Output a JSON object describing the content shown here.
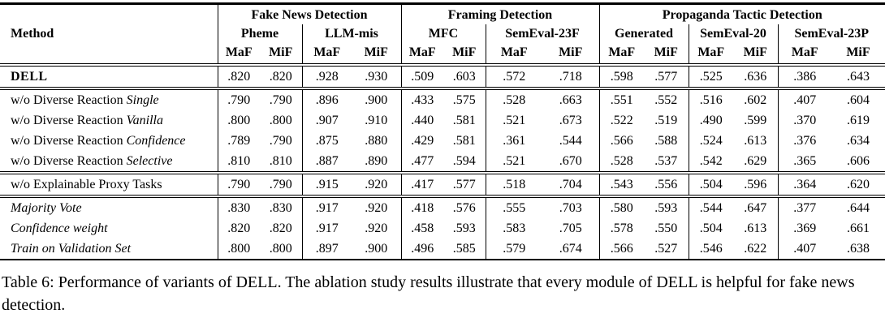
{
  "table": {
    "corner_label": "Method",
    "metric_labels": [
      "MaF",
      "MiF"
    ],
    "groups": [
      {
        "label": "Fake News Detection",
        "datasets": [
          {
            "name": "Pheme"
          },
          {
            "name": "LLM-mis"
          }
        ]
      },
      {
        "label": "Framing Detection",
        "datasets": [
          {
            "name": "MFC"
          },
          {
            "name": "SemEval-23F"
          }
        ]
      },
      {
        "label": "Propaganda Tactic Detection",
        "datasets": [
          {
            "name": "Generated"
          },
          {
            "name": "SemEval-20"
          },
          {
            "name": "SemEval-23P"
          }
        ]
      }
    ],
    "sections": [
      {
        "rows": [
          {
            "method_plain": "DELL",
            "method_italic": "",
            "style": "bold",
            "values": [
              ".820",
              ".820",
              ".928",
              ".930",
              ".509",
              ".603",
              ".572",
              ".718",
              ".598",
              ".577",
              ".525",
              ".636",
              ".386",
              ".643"
            ]
          }
        ]
      },
      {
        "rows": [
          {
            "method_plain": "w/o Diverse Reaction ",
            "method_italic": "Single",
            "style": "normal",
            "values": [
              ".790",
              ".790",
              ".896",
              ".900",
              ".433",
              ".575",
              ".528",
              ".663",
              ".551",
              ".552",
              ".516",
              ".602",
              ".407",
              ".604"
            ]
          },
          {
            "method_plain": "w/o Diverse Reaction ",
            "method_italic": "Vanilla",
            "style": "normal",
            "values": [
              ".800",
              ".800",
              ".907",
              ".910",
              ".440",
              ".581",
              ".521",
              ".673",
              ".522",
              ".519",
              ".490",
              ".599",
              ".370",
              ".619"
            ]
          },
          {
            "method_plain": "w/o Diverse Reaction ",
            "method_italic": "Confidence",
            "style": "normal",
            "values": [
              ".789",
              ".790",
              ".875",
              ".880",
              ".429",
              ".581",
              ".361",
              ".544",
              ".566",
              ".588",
              ".524",
              ".613",
              ".376",
              ".634"
            ]
          },
          {
            "method_plain": "w/o Diverse Reaction ",
            "method_italic": "Selective",
            "style": "normal",
            "values": [
              ".810",
              ".810",
              ".887",
              ".890",
              ".477",
              ".594",
              ".521",
              ".670",
              ".528",
              ".537",
              ".542",
              ".629",
              ".365",
              ".606"
            ]
          }
        ]
      },
      {
        "rows": [
          {
            "method_plain": "w/o Explainable Proxy Tasks",
            "method_italic": "",
            "style": "normal",
            "values": [
              ".790",
              ".790",
              ".915",
              ".920",
              ".417",
              ".577",
              ".518",
              ".704",
              ".543",
              ".556",
              ".504",
              ".596",
              ".364",
              ".620"
            ]
          }
        ]
      },
      {
        "rows": [
          {
            "method_plain": "",
            "method_italic": "Majority Vote",
            "style": "normal",
            "values": [
              ".830",
              ".830",
              ".917",
              ".920",
              ".418",
              ".576",
              ".555",
              ".703",
              ".580",
              ".593",
              ".544",
              ".647",
              ".377",
              ".644"
            ]
          },
          {
            "method_plain": "",
            "method_italic": "Confidence weight",
            "style": "normal",
            "values": [
              ".820",
              ".820",
              ".917",
              ".920",
              ".458",
              ".593",
              ".583",
              ".705",
              ".578",
              ".550",
              ".504",
              ".613",
              ".369",
              ".661"
            ]
          },
          {
            "method_plain": "",
            "method_italic": "Train on Validation Set",
            "style": "normal",
            "values": [
              ".800",
              ".800",
              ".897",
              ".900",
              ".496",
              ".585",
              ".579",
              ".674",
              ".566",
              ".527",
              ".546",
              ".622",
              ".407",
              ".638"
            ]
          }
        ]
      }
    ]
  },
  "caption": {
    "text": "Table 6: Performance of variants of DELL. The ablation study results illustrate that every module of DELL is helpful for fake news detection."
  }
}
